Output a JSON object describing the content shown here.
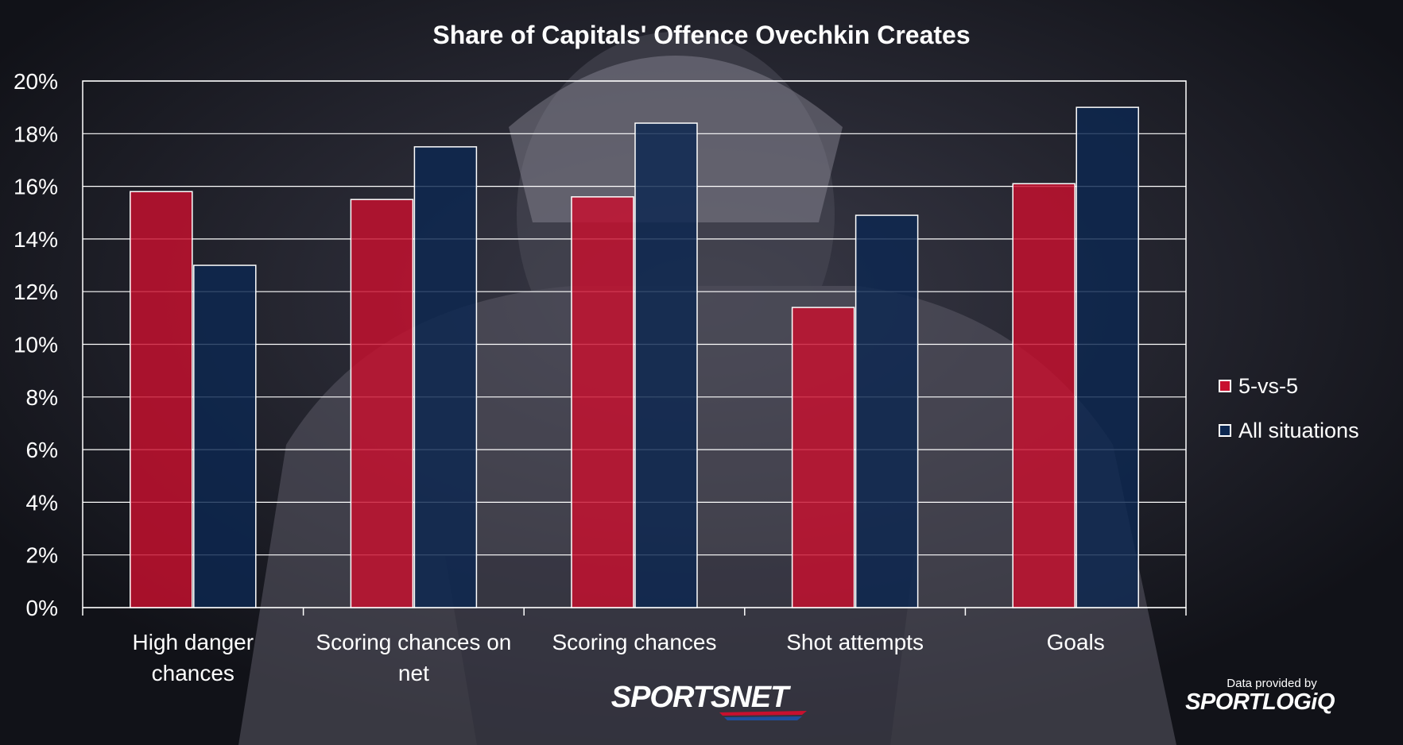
{
  "chart_data": {
    "type": "bar",
    "title": "Share of Capitals' Offence Ovechkin Creates",
    "categories": [
      "High danger chances",
      "Scoring chances on net",
      "Scoring chances",
      "Shot attempts",
      "Goals"
    ],
    "category_lines": [
      [
        "High danger",
        "chances"
      ],
      [
        "Scoring chances on",
        "net"
      ],
      [
        "Scoring chances"
      ],
      [
        "Shot attempts"
      ],
      [
        "Goals"
      ]
    ],
    "series": [
      {
        "name": "5-vs-5",
        "values": [
          15.8,
          15.5,
          15.6,
          11.4,
          16.1
        ],
        "color": "#c8102e"
      },
      {
        "name": "All situations",
        "values": [
          13.0,
          17.5,
          18.4,
          14.9,
          19.0
        ],
        "color": "#0c2750"
      }
    ],
    "ylim": [
      0,
      20
    ],
    "yticks": [
      "0%",
      "2%",
      "4%",
      "6%",
      "8%",
      "10%",
      "12%",
      "14%",
      "16%",
      "18%",
      "20%"
    ],
    "grid": true,
    "legend_position": "right"
  },
  "credits": {
    "provider_label": "Data provided by",
    "provider_brand": "SPORTLOGiQ",
    "network": "SPORTSNET"
  },
  "colors": {
    "accent_red": "#c8102e",
    "accent_navy": "#0c2750"
  }
}
